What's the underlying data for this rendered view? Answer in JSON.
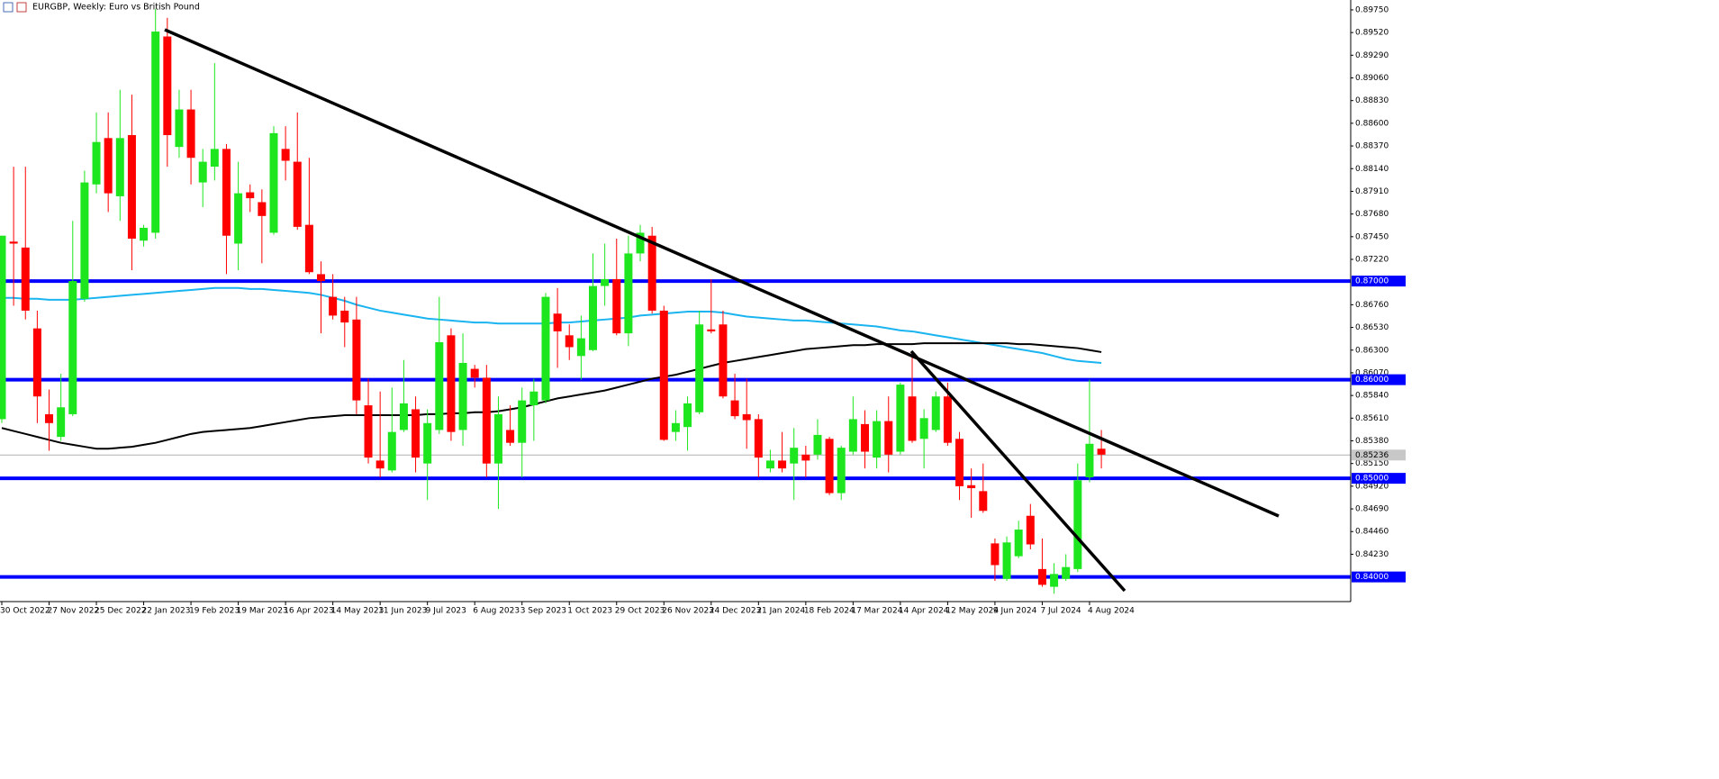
{
  "chart_data": {
    "type": "candlestick",
    "title": "EURGBP, Weekly:  Euro vs British Pound",
    "categories": [
      "30 Oct 2022",
      null,
      null,
      null,
      "27 Nov 2022",
      null,
      null,
      null,
      "25 Dec 2022",
      null,
      null,
      null,
      "22 Jan 2023",
      null,
      null,
      null,
      "19 Feb 2023",
      null,
      null,
      null,
      "19 Mar 2023",
      null,
      null,
      null,
      "16 Apr 2023",
      null,
      null,
      null,
      "14 May 2023",
      null,
      null,
      null,
      "11 Jun 2023",
      null,
      null,
      null,
      "9 Jul 2023",
      null,
      null,
      null,
      "6 Aug 2023",
      null,
      null,
      null,
      "3 Sep 2023",
      null,
      null,
      null,
      "1 Oct 2023",
      null,
      null,
      null,
      "29 Oct 2023",
      null,
      null,
      null,
      "26 Nov 2023",
      null,
      null,
      null,
      "24 Dec 2023",
      null,
      null,
      null,
      "21 Jan 2024",
      null,
      null,
      null,
      "18 Feb 2024",
      null,
      null,
      null,
      "17 Mar 2024",
      null,
      null,
      null,
      "14 Apr 2024",
      null,
      null,
      null,
      "12 May 2024",
      null,
      null,
      null,
      "9 Jun 2024",
      null,
      null,
      null,
      "7 Jul 2024",
      null,
      null,
      null,
      "4 Aug 2024",
      null
    ],
    "open": [
      0.856,
      0.874,
      0.8734,
      0.8652,
      0.8565,
      0.8542,
      0.8565,
      0.8682,
      0.8798,
      0.8845,
      0.8786,
      0.8848,
      0.8741,
      0.8749,
      0.8948,
      0.8836,
      0.8874,
      0.88,
      0.8816,
      0.8834,
      0.8738,
      0.879,
      0.878,
      0.8749,
      0.8834,
      0.8821,
      0.8757,
      0.8707,
      0.8684,
      0.867,
      0.8661,
      0.8574,
      0.8518,
      0.8508,
      0.8549,
      0.857,
      0.8515,
      0.8549,
      0.8645,
      0.8549,
      0.8611,
      0.8602,
      0.8515,
      0.8549,
      0.8536,
      0.8574,
      0.8579,
      0.8667,
      0.8645,
      0.8624,
      0.863,
      0.8695,
      0.8702,
      0.8647,
      0.8728,
      0.8746,
      0.867,
      0.8547,
      0.8552,
      0.8567,
      0.8651,
      0.8656,
      0.8579,
      0.8565,
      0.856,
      0.851,
      0.8518,
      0.8515,
      0.8524,
      0.8524,
      0.854,
      0.8485,
      0.8527,
      0.8555,
      0.8521,
      0.8558,
      0.8527,
      0.8583,
      0.854,
      0.8549,
      0.8583,
      0.854,
      0.8493,
      0.8487,
      0.8434,
      0.8398,
      0.8421,
      0.8462,
      0.8408,
      0.839,
      0.8398,
      0.8408,
      0.8501,
      0.853
    ],
    "high": [
      0.8746,
      0.8816,
      0.8816,
      0.867,
      0.859,
      0.8606,
      0.8761,
      0.8812,
      0.8871,
      0.8871,
      0.8894,
      0.8889,
      0.8757,
      0.8976,
      0.8967,
      0.8894,
      0.8894,
      0.8834,
      0.8921,
      0.8839,
      0.8821,
      0.8798,
      0.8793,
      0.8857,
      0.8857,
      0.8871,
      0.8825,
      0.872,
      0.8707,
      0.8684,
      0.8684,
      0.8601,
      0.8588,
      0.8592,
      0.862,
      0.8583,
      0.857,
      0.8684,
      0.8652,
      0.8647,
      0.8615,
      0.8615,
      0.8583,
      0.8574,
      0.8592,
      0.8601,
      0.8688,
      0.8693,
      0.8656,
      0.8665,
      0.8728,
      0.8738,
      0.8743,
      0.8746,
      0.8757,
      0.8755,
      0.8675,
      0.8569,
      0.8583,
      0.867,
      0.8702,
      0.867,
      0.8606,
      0.8601,
      0.8565,
      0.8529,
      0.8547,
      0.8551,
      0.8533,
      0.856,
      0.8542,
      0.8533,
      0.8583,
      0.8569,
      0.8569,
      0.8583,
      0.8597,
      0.8624,
      0.857,
      0.8588,
      0.8597,
      0.8547,
      0.851,
      0.8515,
      0.8439,
      0.8441,
      0.8457,
      0.8474,
      0.8439,
      0.8414,
      0.8423,
      0.8515,
      0.86,
      0.8549
    ],
    "low": [
      0.8556,
      0.8675,
      0.8661,
      0.8556,
      0.8528,
      0.8538,
      0.8563,
      0.8679,
      0.8789,
      0.877,
      0.8761,
      0.8711,
      0.8735,
      0.8743,
      0.8816,
      0.8825,
      0.8798,
      0.8775,
      0.8802,
      0.8707,
      0.8711,
      0.877,
      0.8718,
      0.8747,
      0.8802,
      0.8752,
      0.8707,
      0.8647,
      0.8661,
      0.8633,
      0.8565,
      0.8515,
      0.8501,
      0.8506,
      0.8547,
      0.8506,
      0.8478,
      0.8545,
      0.8538,
      0.8533,
      0.8592,
      0.8501,
      0.8469,
      0.8533,
      0.8501,
      0.8538,
      0.8576,
      0.8612,
      0.862,
      0.86,
      0.8629,
      0.8675,
      0.8645,
      0.8634,
      0.872,
      0.8667,
      0.8538,
      0.8538,
      0.8528,
      0.8565,
      0.8647,
      0.8581,
      0.856,
      0.853,
      0.8501,
      0.8506,
      0.8506,
      0.8478,
      0.8501,
      0.8519,
      0.8483,
      0.8478,
      0.8524,
      0.851,
      0.851,
      0.8506,
      0.8524,
      0.8536,
      0.851,
      0.8547,
      0.8533,
      0.8478,
      0.846,
      0.8465,
      0.8396,
      0.8396,
      0.8419,
      0.8428,
      0.839,
      0.8383,
      0.8396,
      0.8405,
      0.8496,
      0.851
    ],
    "close": [
      0.8746,
      0.8738,
      0.867,
      0.8583,
      0.8556,
      0.8572,
      0.87,
      0.88,
      0.8841,
      0.8789,
      0.8845,
      0.8743,
      0.8754,
      0.8953,
      0.8848,
      0.8874,
      0.8825,
      0.8821,
      0.8834,
      0.8746,
      0.8789,
      0.8784,
      0.8766,
      0.885,
      0.8822,
      0.8755,
      0.8709,
      0.87,
      0.8665,
      0.8658,
      0.8579,
      0.8521,
      0.851,
      0.8547,
      0.8576,
      0.8521,
      0.8556,
      0.8638,
      0.8547,
      0.8617,
      0.8602,
      0.8515,
      0.8565,
      0.8536,
      0.8579,
      0.8588,
      0.8684,
      0.8649,
      0.8633,
      0.8642,
      0.8695,
      0.8702,
      0.8647,
      0.8728,
      0.8749,
      0.867,
      0.8539,
      0.8556,
      0.8576,
      0.8656,
      0.8649,
      0.8583,
      0.8563,
      0.8559,
      0.8521,
      0.8518,
      0.851,
      0.8531,
      0.8518,
      0.8544,
      0.8485,
      0.8531,
      0.856,
      0.8527,
      0.8558,
      0.8524,
      0.8595,
      0.8538,
      0.8561,
      0.8583,
      0.8536,
      0.8492,
      0.849,
      0.8467,
      0.8412,
      0.8435,
      0.8448,
      0.8433,
      0.8392,
      0.8403,
      0.841,
      0.8498,
      0.8535,
      0.8524
    ],
    "up_color": "#1ee61e",
    "down_color": "#ff0000",
    "moving_averages": [
      {
        "color": "#1ab4f0",
        "values": [
          0.8683,
          0.8683,
          0.8682,
          0.8682,
          0.8681,
          0.8681,
          0.8681,
          0.8682,
          0.8683,
          0.8684,
          0.8685,
          0.8686,
          0.8687,
          0.8688,
          0.8689,
          0.869,
          0.8691,
          0.8692,
          0.8693,
          0.8693,
          0.8693,
          0.8692,
          0.8692,
          0.8691,
          0.869,
          0.8689,
          0.8688,
          0.8686,
          0.8683,
          0.868,
          0.8676,
          0.8673,
          0.867,
          0.8668,
          0.8666,
          0.8664,
          0.8662,
          0.8661,
          0.866,
          0.8659,
          0.8658,
          0.8658,
          0.8657,
          0.8657,
          0.8657,
          0.8657,
          0.8657,
          0.8658,
          0.8658,
          0.8659,
          0.866,
          0.8661,
          0.8662,
          0.8663,
          0.8665,
          0.8666,
          0.8667,
          0.8668,
          0.8669,
          0.8669,
          0.8669,
          0.8668,
          0.8666,
          0.8664,
          0.8663,
          0.8662,
          0.8661,
          0.866,
          0.866,
          0.8659,
          0.8658,
          0.8657,
          0.8656,
          0.8655,
          0.8654,
          0.8652,
          0.865,
          0.8649,
          0.8647,
          0.8645,
          0.8643,
          0.8641,
          0.8639,
          0.8637,
          0.8635,
          0.8633,
          0.8631,
          0.8629,
          0.8627,
          0.8624,
          0.8621,
          0.8619,
          0.8618,
          0.8617
        ]
      },
      {
        "color": "#000000",
        "values": [
          0.8551,
          0.8548,
          0.8545,
          0.8542,
          0.8539,
          0.8536,
          0.8534,
          0.8532,
          0.853,
          0.853,
          0.8531,
          0.8532,
          0.8534,
          0.8536,
          0.8539,
          0.8542,
          0.8545,
          0.8547,
          0.8548,
          0.8549,
          0.855,
          0.8551,
          0.8553,
          0.8555,
          0.8557,
          0.8559,
          0.8561,
          0.8562,
          0.8563,
          0.8564,
          0.8564,
          0.8564,
          0.8564,
          0.8564,
          0.8564,
          0.8564,
          0.8565,
          0.8565,
          0.8566,
          0.8566,
          0.8567,
          0.8567,
          0.8568,
          0.857,
          0.8572,
          0.8575,
          0.8578,
          0.8581,
          0.8583,
          0.8585,
          0.8587,
          0.8589,
          0.8592,
          0.8595,
          0.8598,
          0.8601,
          0.8603,
          0.8605,
          0.8608,
          0.8611,
          0.8614,
          0.8617,
          0.8619,
          0.8621,
          0.8623,
          0.8625,
          0.8627,
          0.8629,
          0.8631,
          0.8632,
          0.8633,
          0.8634,
          0.8635,
          0.8635,
          0.8636,
          0.8636,
          0.8636,
          0.8636,
          0.8637,
          0.8637,
          0.8637,
          0.8637,
          0.8637,
          0.8637,
          0.8637,
          0.8637,
          0.8636,
          0.8636,
          0.8635,
          0.8634,
          0.8633,
          0.8632,
          0.863,
          0.8628
        ]
      }
    ],
    "levels": [
      {
        "value": 0.87,
        "label": "0.87000"
      },
      {
        "value": 0.86,
        "label": "0.86000"
      },
      {
        "value": 0.85,
        "label": "0.85000"
      },
      {
        "value": 0.84,
        "label": "0.84000"
      }
    ],
    "level_color": "#0000ff",
    "current_price": {
      "value": 0.85236,
      "label": "0.85236"
    },
    "ylim": [
      0.8375,
      0.8985
    ],
    "yticks": [
      {
        "value": 0.8975,
        "label": "0.89750"
      },
      {
        "value": 0.8952,
        "label": "0.89520"
      },
      {
        "value": 0.8929,
        "label": "0.89290"
      },
      {
        "value": 0.8906,
        "label": "0.89060"
      },
      {
        "value": 0.8883,
        "label": "0.88830"
      },
      {
        "value": 0.886,
        "label": "0.88600"
      },
      {
        "value": 0.8837,
        "label": "0.88370"
      },
      {
        "value": 0.8814,
        "label": "0.88140"
      },
      {
        "value": 0.8791,
        "label": "0.87910"
      },
      {
        "value": 0.8768,
        "label": "0.87680"
      },
      {
        "value": 0.8745,
        "label": "0.87450"
      },
      {
        "value": 0.8722,
        "label": "0.87220"
      },
      {
        "value": 0.8676,
        "label": "0.86760"
      },
      {
        "value": 0.8653,
        "label": "0.86530"
      },
      {
        "value": 0.863,
        "label": "0.86300"
      },
      {
        "value": 0.8607,
        "label": "0.86070"
      },
      {
        "value": 0.8584,
        "label": "0.85840"
      },
      {
        "value": 0.8561,
        "label": "0.85610"
      },
      {
        "value": 0.8538,
        "label": "0.85380"
      },
      {
        "value": 0.8515,
        "label": "0.85150"
      },
      {
        "value": 0.8492,
        "label": "0.84920"
      },
      {
        "value": 0.8469,
        "label": "0.84690"
      },
      {
        "value": 0.8446,
        "label": "0.84460"
      },
      {
        "value": 0.8423,
        "label": "0.84230"
      }
    ]
  }
}
